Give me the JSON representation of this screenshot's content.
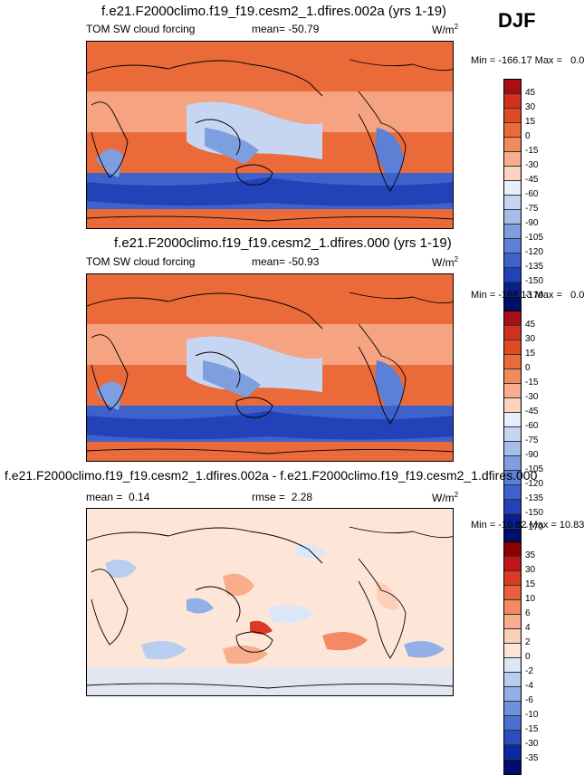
{
  "season": "DJF",
  "chart_data": [
    {
      "type": "heatmap",
      "title": "f.e21.F2000climo.f19_f19.cesm2_1.dfires.002a (yrs 1-19)",
      "variable": "TOM SW cloud forcing",
      "mean_label": "mean=",
      "mean": "-50.79",
      "units": "W/m",
      "units_sup": "2",
      "min_label": "Min =",
      "min": "-166.17",
      "max_label": "Max =",
      "max": "0.00",
      "levels": [
        "45",
        "30",
        "15",
        "0",
        "-15",
        "-30",
        "-45",
        "-60",
        "-75",
        "-90",
        "-105",
        "-120",
        "-135",
        "-150",
        "-170"
      ],
      "colors": [
        "#a50f15",
        "#d32f1f",
        "#e04a22",
        "#ea6a3a",
        "#f28a5e",
        "#f7ad8e",
        "#fcd3bd",
        "#e8eefa",
        "#c6d6f2",
        "#a4bde9",
        "#7f9ee0",
        "#5c80d6",
        "#3d62cc",
        "#2442b8",
        "#0a1f8f",
        "#000e6b"
      ]
    },
    {
      "type": "heatmap",
      "title": "f.e21.F2000climo.f19_f19.cesm2_1.dfires.000 (yrs 1-19)",
      "variable": "TOM SW cloud forcing",
      "mean_label": "mean=",
      "mean": "-50.93",
      "units": "W/m",
      "units_sup": "2",
      "min_label": "Min =",
      "min": "-168.13",
      "max_label": "Max =",
      "max": "0.00",
      "levels": [
        "45",
        "30",
        "15",
        "0",
        "-15",
        "-30",
        "-45",
        "-60",
        "-75",
        "-90",
        "-105",
        "-120",
        "-135",
        "-150",
        "-170"
      ],
      "colors": [
        "#a50f15",
        "#d32f1f",
        "#e04a22",
        "#ea6a3a",
        "#f28a5e",
        "#f7ad8e",
        "#fcd3bd",
        "#e8eefa",
        "#c6d6f2",
        "#a4bde9",
        "#7f9ee0",
        "#5c80d6",
        "#3d62cc",
        "#2442b8",
        "#0a1f8f",
        "#000e6b"
      ]
    },
    {
      "type": "heatmap",
      "title": "f.e21.F2000climo.f19_f19.cesm2_1.dfires.002a - f.e21.F2000climo.f19_f19.cesm2_1.dfires.000",
      "mean_label": "mean =",
      "mean": "0.14",
      "rmse_label": "rmse =",
      "rmse": "2.28",
      "units": "W/m",
      "units_sup": "2",
      "min_label": "Min =",
      "min": "-10.82",
      "max_label": "Max =",
      "max": "10.83",
      "levels": [
        "35",
        "30",
        "15",
        "10",
        "6",
        "4",
        "2",
        "0",
        "-2",
        "-4",
        "-6",
        "-10",
        "-15",
        "-30",
        "-35"
      ],
      "colors": [
        "#8b0000",
        "#c0161b",
        "#dc3a26",
        "#eb5f3d",
        "#f38a64",
        "#f8ad8c",
        "#fcd0b8",
        "#fde6d8",
        "#dbe6f7",
        "#b8cdf0",
        "#92b0e6",
        "#6d92dc",
        "#4a70d1",
        "#2a4dc0",
        "#0c28a0",
        "#000c70"
      ]
    }
  ]
}
